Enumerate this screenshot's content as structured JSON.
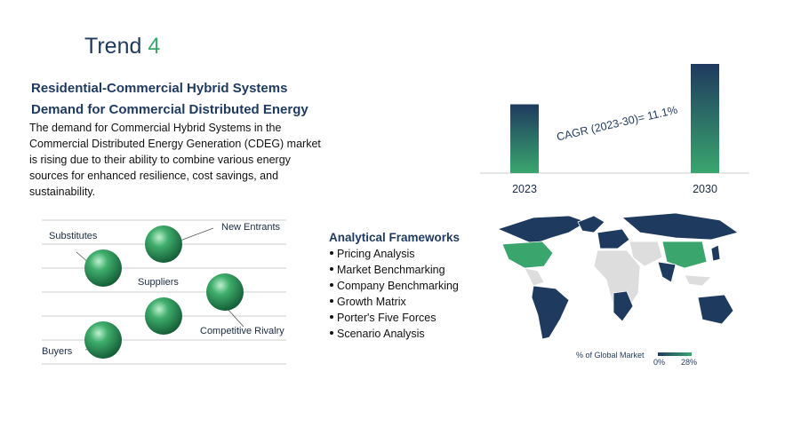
{
  "header": {
    "title": "Trend",
    "number": "4"
  },
  "headings": [
    "Residential-Commercial Hybrid Systems",
    "Demand for Commercial Distributed Energy"
  ],
  "description": [
    "The demand for Commercial Hybrid Systems in the",
    "Commercial Distributed Energy Generation (CDEG) market",
    "is rising due to their ability to combine various energy",
    "sources for enhanced resilience, cost savings, and",
    "sustainability."
  ],
  "chart_data": {
    "type": "bar",
    "categories": [
      "2023",
      "2030"
    ],
    "values": [
      63,
      100
    ],
    "colors": [
      "#1f3a5f",
      "#3aa66e"
    ],
    "annotation": "CAGR (2023-30)= 11.1%"
  },
  "forces": {
    "labels": [
      "Substitutes",
      "New Entrants",
      "Suppliers",
      "Competitive Rivalry",
      "Buyers"
    ]
  },
  "frameworks": {
    "title": "Analytical Frameworks",
    "items": [
      "Pricing Analysis",
      "Market Benchmarking",
      "Company Benchmarking",
      "Growth Matrix",
      "Porter's Five Forces",
      "Scenario Analysis"
    ]
  },
  "map_legend": {
    "title": "% of Global Market",
    "min": "0%",
    "max": "28%"
  }
}
